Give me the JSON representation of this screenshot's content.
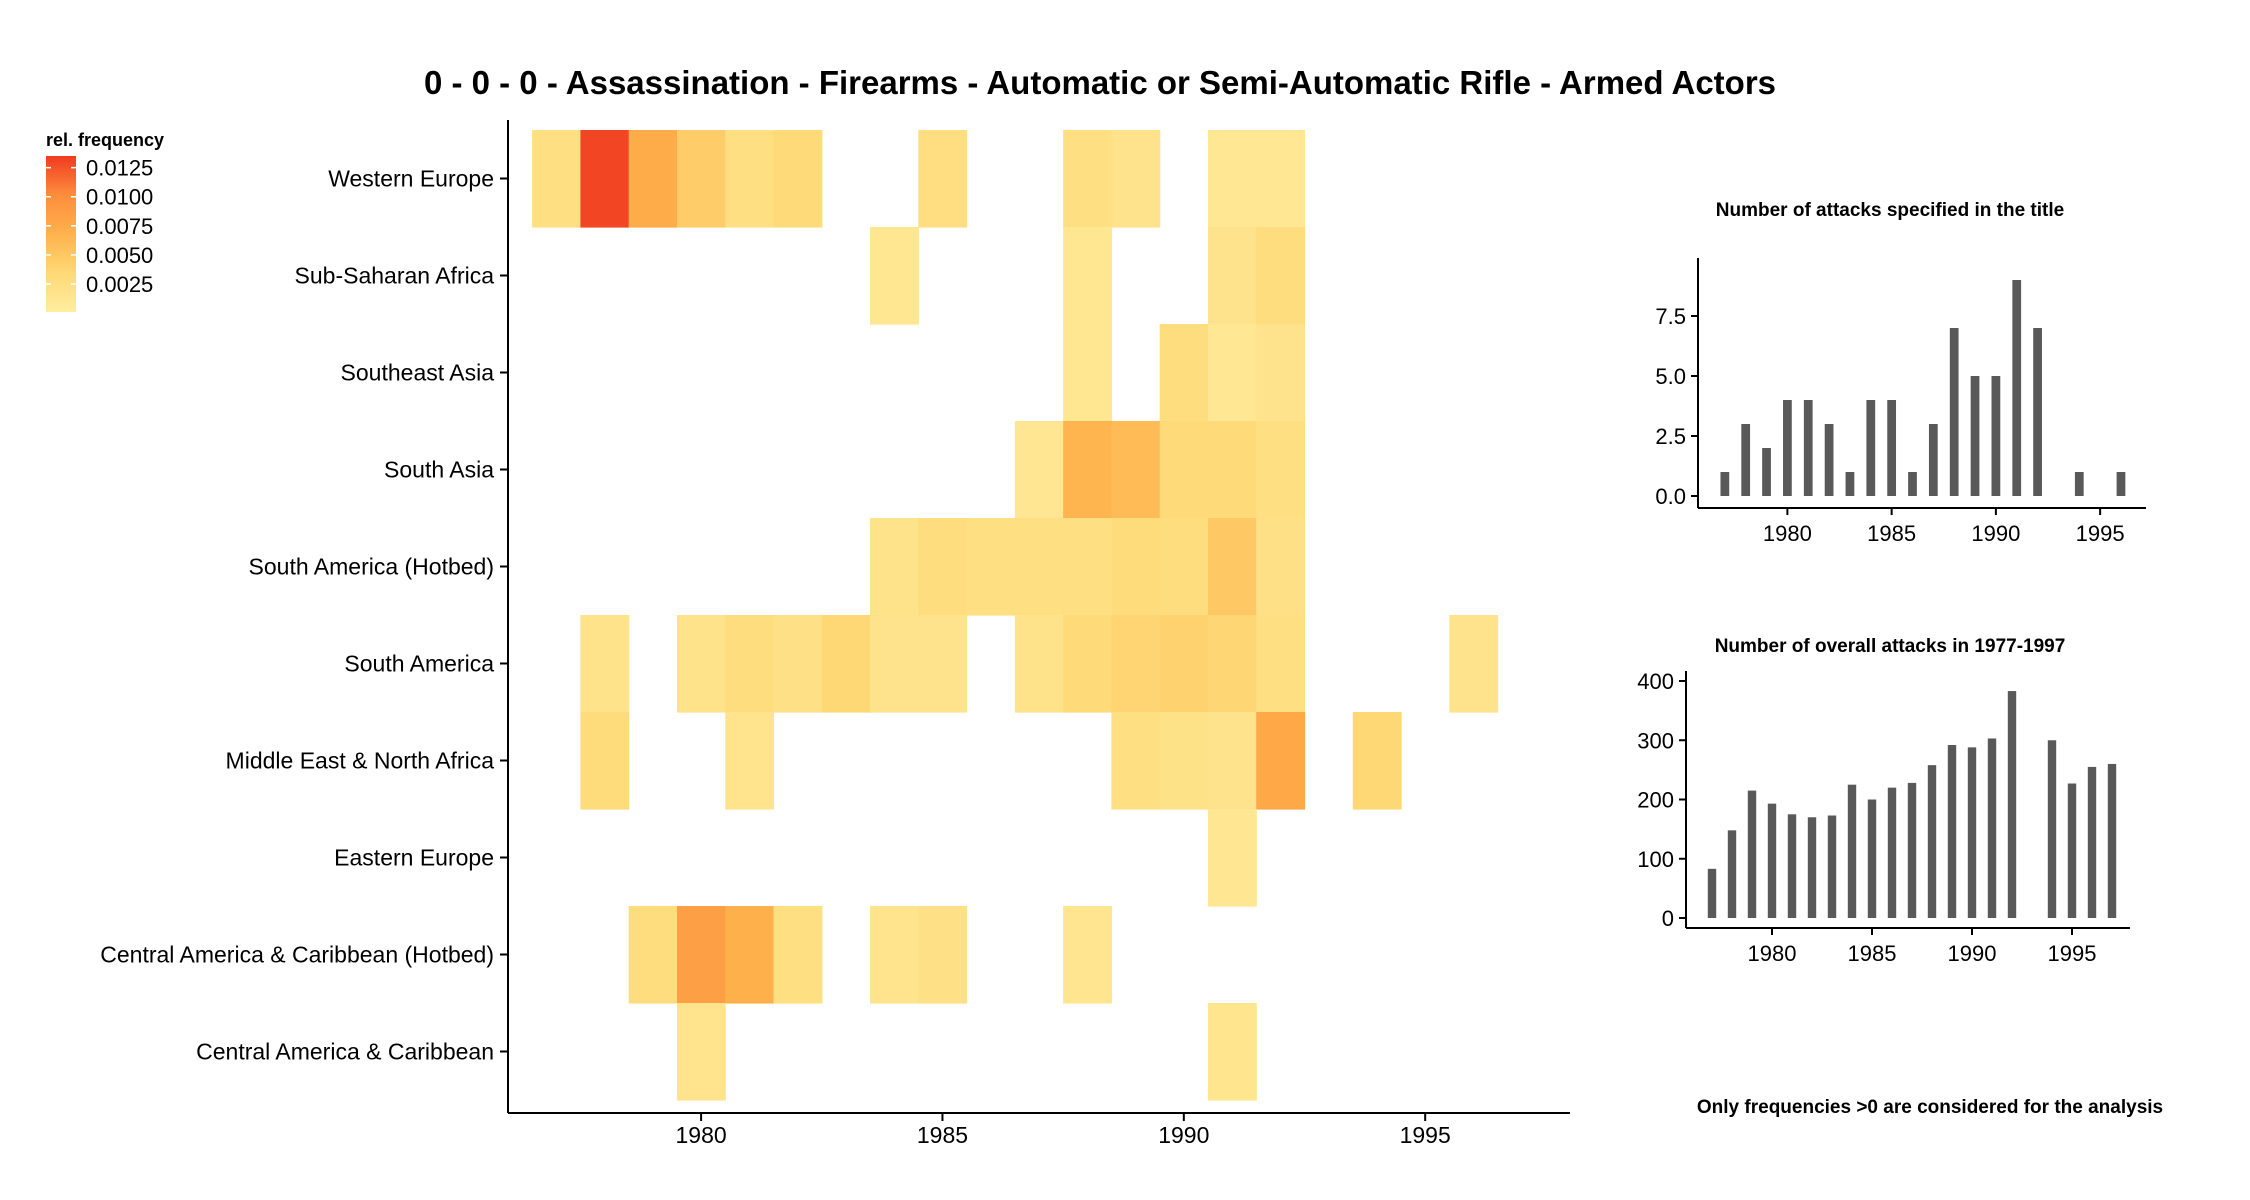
{
  "title": "0 - 0 - 0 - Assassination - Firearms - Automatic or Semi-Automatic Rifle - Armed Actors",
  "legend": {
    "title": "rel. frequency",
    "ticks": [
      "0.0125",
      "0.0100",
      "0.0075",
      "0.0050",
      "0.0025"
    ],
    "tick_values": [
      0.0125,
      0.01,
      0.0075,
      0.005,
      0.0025
    ],
    "range": [
      0.0001,
      0.0135
    ],
    "colors": [
      "#ffedA0",
      "#fed976",
      "#feb24c",
      "#fd8d3c",
      "#f03b20"
    ]
  },
  "note": "Only frequencies >0 are considered for the analysis",
  "chart_data": [
    {
      "type": "heatmap",
      "title": "0 - 0 - 0 - Assassination - Firearms - Automatic or Semi-Automatic Rifle - Armed Actors",
      "xlabel": "",
      "ylabel": "",
      "xlim": [
        1976,
        1998
      ],
      "x_ticks": [
        "1980",
        "1985",
        "1990",
        "1995"
      ],
      "x_tick_values": [
        1980,
        1985,
        1990,
        1995
      ],
      "rows": [
        "Western Europe",
        "Sub-Saharan Africa",
        "Southeast Asia",
        "South Asia",
        "South America (Hotbed)",
        "South America",
        "Middle East & North Africa",
        "Eastern Europe",
        "Central America & Caribbean (Hotbed)",
        "Central America & Caribbean"
      ],
      "cells": [
        {
          "row": "Western Europe",
          "year": 1977,
          "value": 0.0025
        },
        {
          "row": "Western Europe",
          "year": 1978,
          "value": 0.0131
        },
        {
          "row": "Western Europe",
          "year": 1979,
          "value": 0.0074
        },
        {
          "row": "Western Europe",
          "year": 1980,
          "value": 0.0045
        },
        {
          "row": "Western Europe",
          "year": 1981,
          "value": 0.0025
        },
        {
          "row": "Western Europe",
          "year": 1982,
          "value": 0.0033
        },
        {
          "row": "Western Europe",
          "year": 1985,
          "value": 0.0026
        },
        {
          "row": "Western Europe",
          "year": 1988,
          "value": 0.0025
        },
        {
          "row": "Western Europe",
          "year": 1989,
          "value": 0.0017
        },
        {
          "row": "Western Europe",
          "year": 1991,
          "value": 0.0011
        },
        {
          "row": "Western Europe",
          "year": 1992,
          "value": 0.0011
        },
        {
          "row": "Sub-Saharan Africa",
          "year": 1984,
          "value": 0.0013
        },
        {
          "row": "Sub-Saharan Africa",
          "year": 1988,
          "value": 0.0013
        },
        {
          "row": "Sub-Saharan Africa",
          "year": 1991,
          "value": 0.0017
        },
        {
          "row": "Sub-Saharan Africa",
          "year": 1992,
          "value": 0.0028
        },
        {
          "row": "Southeast Asia",
          "year": 1988,
          "value": 0.0013
        },
        {
          "row": "Southeast Asia",
          "year": 1990,
          "value": 0.0028
        },
        {
          "row": "Southeast Asia",
          "year": 1991,
          "value": 0.0011
        },
        {
          "row": "Southeast Asia",
          "year": 1992,
          "value": 0.0017
        },
        {
          "row": "South Asia",
          "year": 1987,
          "value": 0.0012
        },
        {
          "row": "South Asia",
          "year": 1988,
          "value": 0.0065
        },
        {
          "row": "South Asia",
          "year": 1989,
          "value": 0.006
        },
        {
          "row": "South Asia",
          "year": 1990,
          "value": 0.0033
        },
        {
          "row": "South Asia",
          "year": 1991,
          "value": 0.0033
        },
        {
          "row": "South Asia",
          "year": 1992,
          "value": 0.0025
        },
        {
          "row": "South America (Hotbed)",
          "year": 1984,
          "value": 0.0018
        },
        {
          "row": "South America (Hotbed)",
          "year": 1985,
          "value": 0.0027
        },
        {
          "row": "South America (Hotbed)",
          "year": 1986,
          "value": 0.0025
        },
        {
          "row": "South America (Hotbed)",
          "year": 1987,
          "value": 0.0025
        },
        {
          "row": "South America (Hotbed)",
          "year": 1988,
          "value": 0.0025
        },
        {
          "row": "South America (Hotbed)",
          "year": 1989,
          "value": 0.003
        },
        {
          "row": "South America (Hotbed)",
          "year": 1990,
          "value": 0.0028
        },
        {
          "row": "South America (Hotbed)",
          "year": 1991,
          "value": 0.0048
        },
        {
          "row": "South America (Hotbed)",
          "year": 1992,
          "value": 0.0022
        },
        {
          "row": "South America",
          "year": 1978,
          "value": 0.0018
        },
        {
          "row": "South America",
          "year": 1980,
          "value": 0.0018
        },
        {
          "row": "South America",
          "year": 1981,
          "value": 0.0027
        },
        {
          "row": "South America",
          "year": 1982,
          "value": 0.0022
        },
        {
          "row": "South America",
          "year": 1983,
          "value": 0.0035
        },
        {
          "row": "South America",
          "year": 1984,
          "value": 0.0017
        },
        {
          "row": "South America",
          "year": 1985,
          "value": 0.0017
        },
        {
          "row": "South America",
          "year": 1987,
          "value": 0.0018
        },
        {
          "row": "South America",
          "year": 1988,
          "value": 0.0033
        },
        {
          "row": "South America",
          "year": 1989,
          "value": 0.0038
        },
        {
          "row": "South America",
          "year": 1990,
          "value": 0.004
        },
        {
          "row": "South America",
          "year": 1991,
          "value": 0.0037
        },
        {
          "row": "South America",
          "year": 1992,
          "value": 0.0025
        },
        {
          "row": "South America",
          "year": 1996,
          "value": 0.0017
        },
        {
          "row": "Middle East & North Africa",
          "year": 1978,
          "value": 0.003
        },
        {
          "row": "Middle East & North Africa",
          "year": 1981,
          "value": 0.0016
        },
        {
          "row": "Middle East & North Africa",
          "year": 1989,
          "value": 0.0025
        },
        {
          "row": "Middle East & North Africa",
          "year": 1990,
          "value": 0.002
        },
        {
          "row": "Middle East & North Africa",
          "year": 1991,
          "value": 0.0017
        },
        {
          "row": "Middle East & North Africa",
          "year": 1992,
          "value": 0.0077
        },
        {
          "row": "Middle East & North Africa",
          "year": 1994,
          "value": 0.0035
        },
        {
          "row": "Eastern Europe",
          "year": 1991,
          "value": 0.0012
        },
        {
          "row": "Central America & Caribbean (Hotbed)",
          "year": 1979,
          "value": 0.0028
        },
        {
          "row": "Central America & Caribbean (Hotbed)",
          "year": 1980,
          "value": 0.0085
        },
        {
          "row": "Central America & Caribbean (Hotbed)",
          "year": 1981,
          "value": 0.007
        },
        {
          "row": "Central America & Caribbean (Hotbed)",
          "year": 1982,
          "value": 0.0025
        },
        {
          "row": "Central America & Caribbean (Hotbed)",
          "year": 1984,
          "value": 0.0016
        },
        {
          "row": "Central America & Caribbean (Hotbed)",
          "year": 1985,
          "value": 0.0022
        },
        {
          "row": "Central America & Caribbean (Hotbed)",
          "year": 1988,
          "value": 0.0014
        },
        {
          "row": "Central America & Caribbean",
          "year": 1980,
          "value": 0.0016
        },
        {
          "row": "Central America & Caribbean",
          "year": 1991,
          "value": 0.0015
        }
      ]
    },
    {
      "type": "bar",
      "title": "Number of attacks specified in the title",
      "xlabel": "",
      "ylabel": "",
      "x": [
        1977,
        1978,
        1979,
        1980,
        1981,
        1982,
        1983,
        1984,
        1985,
        1986,
        1987,
        1988,
        1989,
        1990,
        1991,
        1992,
        1994,
        1996
      ],
      "values": [
        1,
        3,
        2,
        4,
        4,
        3,
        1,
        4,
        4,
        1,
        3,
        7,
        5,
        5,
        9,
        7,
        1,
        1
      ],
      "ylim": [
        0,
        9.5
      ],
      "xlim": [
        1976,
        1997.2
      ],
      "y_ticks": [
        "0.0",
        "2.5",
        "5.0",
        "7.5"
      ],
      "y_tick_values": [
        0,
        2.5,
        5,
        7.5
      ],
      "x_ticks": [
        "1980",
        "1985",
        "1990",
        "1995"
      ],
      "x_tick_values": [
        1980,
        1985,
        1990,
        1995
      ]
    },
    {
      "type": "bar",
      "title": "Number of overall attacks in 1977-1997",
      "xlabel": "",
      "ylabel": "",
      "x": [
        1977,
        1978,
        1979,
        1980,
        1981,
        1982,
        1983,
        1984,
        1985,
        1986,
        1987,
        1988,
        1989,
        1990,
        1991,
        1992,
        1994,
        1995,
        1996,
        1997
      ],
      "values": [
        83,
        148,
        215,
        193,
        175,
        170,
        173,
        225,
        200,
        220,
        228,
        258,
        292,
        288,
        303,
        383,
        300,
        227,
        255,
        260
      ],
      "ylim": [
        0,
        400
      ],
      "xlim": [
        1976,
        1997.9
      ],
      "y_ticks": [
        "0",
        "100",
        "200",
        "300",
        "400"
      ],
      "y_tick_values": [
        0,
        100,
        200,
        300,
        400
      ],
      "x_ticks": [
        "1980",
        "1985",
        "1990",
        "1995"
      ],
      "x_tick_values": [
        1980,
        1985,
        1990,
        1995
      ]
    }
  ]
}
